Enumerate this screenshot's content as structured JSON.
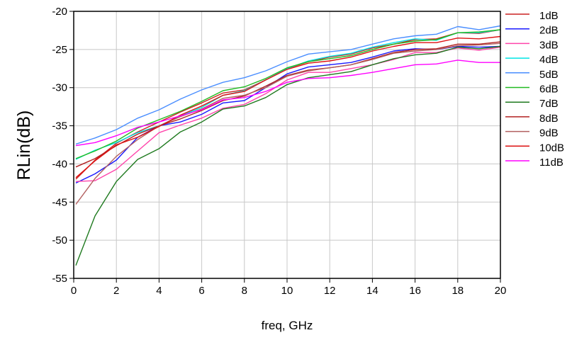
{
  "chart_data": {
    "type": "line",
    "xlabel": "freq, GHz",
    "ylabel": "RLin(dB)",
    "xlim": [
      0,
      20
    ],
    "ylim": [
      -55,
      -20
    ],
    "xticks": [
      "0",
      "2",
      "4",
      "6",
      "8",
      "10",
      "12",
      "14",
      "16",
      "18",
      "20"
    ],
    "yticks": [
      "-20",
      "-25",
      "-30",
      "-35",
      "-40",
      "-45",
      "-50",
      "-55"
    ],
    "grid": true,
    "legend_position": "right",
    "x": [
      0.1,
      1,
      2,
      3,
      4,
      5,
      6,
      7,
      8,
      9,
      10,
      11,
      12,
      13,
      14,
      15,
      16,
      17,
      18,
      19,
      20
    ],
    "series": [
      {
        "name": "1dB",
        "color": "#cc2222",
        "values": [
          -42.0,
          -39.5,
          -37.3,
          -35.8,
          -34.5,
          -33.2,
          -32.0,
          -30.7,
          -30.3,
          -29.0,
          -27.5,
          -26.6,
          -26.0,
          -25.6,
          -24.8,
          -24.3,
          -23.7,
          -23.6,
          -22.8,
          -22.9,
          -22.4
        ]
      },
      {
        "name": "2dB",
        "color": "#1a1aff",
        "values": [
          -42.5,
          -41.3,
          -39.5,
          -36.5,
          -35.0,
          -34.5,
          -33.5,
          -32.0,
          -31.7,
          -30.0,
          -28.2,
          -27.3,
          -27.0,
          -26.7,
          -26.0,
          -25.2,
          -24.9,
          -25.0,
          -24.6,
          -24.7,
          -24.6
        ]
      },
      {
        "name": "3dB",
        "color": "#ff44aa",
        "values": [
          -42.3,
          -42.2,
          -40.7,
          -38.3,
          -35.9,
          -34.9,
          -34.0,
          -32.7,
          -32.2,
          -30.8,
          -29.0,
          -28.0,
          -28.0,
          -27.5,
          -27.0,
          -26.3,
          -25.4,
          -25.4,
          -24.8,
          -25.1,
          -24.7
        ]
      },
      {
        "name": "4dB",
        "color": "#00e5e5",
        "values": [
          -39.4,
          -38.2,
          -37.2,
          -35.9,
          -35.0,
          -33.7,
          -32.6,
          -31.0,
          -30.4,
          -29.0,
          -27.5,
          -26.5,
          -25.9,
          -25.5,
          -24.7,
          -24.1,
          -23.6,
          -23.8,
          -22.8,
          -22.8,
          -22.4
        ]
      },
      {
        "name": "5dB",
        "color": "#4a8eff",
        "values": [
          -37.4,
          -36.6,
          -35.5,
          -34.0,
          -32.9,
          -31.5,
          -30.3,
          -29.3,
          -28.7,
          -27.8,
          -26.6,
          -25.6,
          -25.3,
          -25.0,
          -24.3,
          -23.6,
          -23.2,
          -23.0,
          -22.0,
          -22.4,
          -21.9
        ]
      },
      {
        "name": "6dB",
        "color": "#22bb22",
        "values": [
          -39.3,
          -38.3,
          -37.0,
          -35.3,
          -34.2,
          -33.1,
          -31.8,
          -30.4,
          -29.9,
          -28.8,
          -27.4,
          -26.6,
          -26.2,
          -25.8,
          -25.0,
          -24.3,
          -23.9,
          -23.7,
          -22.8,
          -22.7,
          -22.4
        ]
      },
      {
        "name": "7dB",
        "color": "#1f7a1f",
        "values": [
          -53.3,
          -46.8,
          -42.3,
          -39.4,
          -38.0,
          -35.8,
          -34.5,
          -32.8,
          -32.4,
          -31.3,
          -29.6,
          -28.7,
          -28.3,
          -27.9,
          -27.0,
          -26.2,
          -25.7,
          -25.5,
          -24.7,
          -24.9,
          -24.6
        ]
      },
      {
        "name": "8dB",
        "color": "#b22222",
        "values": [
          -40.4,
          -39.3,
          -37.6,
          -36.1,
          -35.0,
          -34.1,
          -33.0,
          -31.7,
          -31.1,
          -29.8,
          -28.4,
          -27.7,
          -27.4,
          -27.0,
          -26.2,
          -25.4,
          -25.0,
          -24.9,
          -24.3,
          -24.3,
          -24.0
        ]
      },
      {
        "name": "9dB",
        "color": "#b25f5f",
        "values": [
          -45.3,
          -41.9,
          -39.0,
          -36.8,
          -35.0,
          -33.8,
          -32.8,
          -31.4,
          -31.0,
          -30.0,
          -28.5,
          -27.8,
          -27.4,
          -27.0,
          -26.3,
          -25.5,
          -25.2,
          -25.0,
          -24.5,
          -24.4,
          -24.2
        ]
      },
      {
        "name": "10dB",
        "color": "#dd1111",
        "values": [
          -41.8,
          -39.6,
          -37.5,
          -36.5,
          -35.1,
          -33.6,
          -32.4,
          -31.0,
          -30.5,
          -29.0,
          -27.6,
          -26.8,
          -26.5,
          -26.0,
          -25.2,
          -24.6,
          -24.1,
          -24.1,
          -23.5,
          -23.6,
          -23.3
        ]
      },
      {
        "name": "11dB",
        "color": "#ff00ff",
        "values": [
          -37.6,
          -37.2,
          -36.3,
          -35.2,
          -34.5,
          -33.7,
          -32.9,
          -31.6,
          -31.3,
          -30.5,
          -29.3,
          -28.8,
          -28.7,
          -28.4,
          -28.0,
          -27.5,
          -27.0,
          -26.9,
          -26.4,
          -26.7,
          -26.7
        ]
      }
    ]
  }
}
